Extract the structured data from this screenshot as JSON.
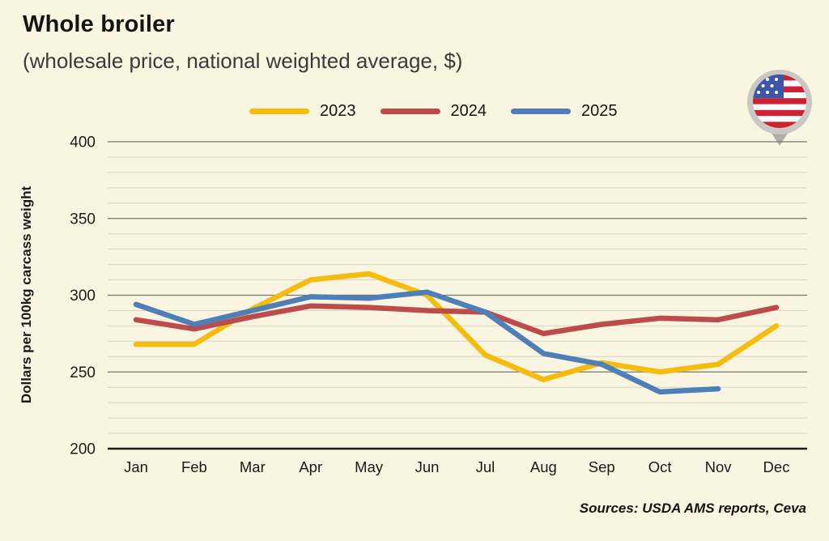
{
  "header": {
    "title": "Whole broiler",
    "subtitle": "(wholesale price, national weighted average, $)"
  },
  "source": "Sources: USDA AMS reports, Ceva",
  "flag_icon": "us-flag-location-pin",
  "colors": {
    "background": "#FAF5E1",
    "gridline_minor": "#D8D4C6",
    "gridline_major": "#787670",
    "axis_line": "#1c1c1c",
    "series_2023": "#F5BC0D",
    "series_2024": "#BC4B4B",
    "series_2025": "#4E7FB6"
  },
  "chart_data": {
    "type": "line",
    "title": "Whole broiler (wholesale price, national weighted average, $)",
    "categories": [
      "Jan",
      "Feb",
      "Mar",
      "Apr",
      "May",
      "Jun",
      "Jul",
      "Aug",
      "Sep",
      "Oct",
      "Nov",
      "Dec"
    ],
    "series": [
      {
        "name": "2023",
        "color": "#F5BC0D",
        "values": [
          268,
          268,
          291,
          310,
          314,
          300,
          261,
          245,
          256,
          250,
          255,
          280
        ]
      },
      {
        "name": "2024",
        "color": "#BC4B4B",
        "values": [
          284,
          278,
          286,
          293,
          292,
          290,
          289,
          275,
          281,
          285,
          284,
          292
        ]
      },
      {
        "name": "2025",
        "color": "#4E7FB6",
        "values": [
          294,
          281,
          290,
          299,
          298,
          302,
          289,
          262,
          255,
          237,
          239,
          null
        ]
      }
    ],
    "xlabel": "",
    "ylabel": "Dollars per 100kg carcass weight",
    "ylim": [
      200,
      400
    ],
    "yticks": [
      200,
      250,
      300,
      350,
      400
    ],
    "ytick_major": 50,
    "ytick_minor": 10,
    "grid": true,
    "legend_position": "top"
  }
}
